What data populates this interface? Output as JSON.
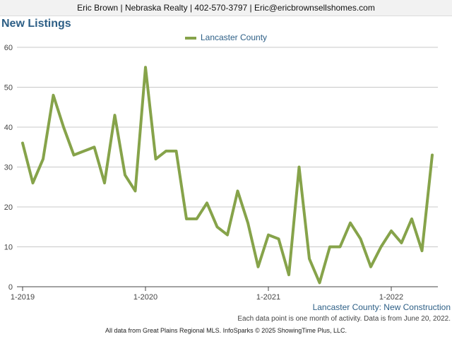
{
  "header": {
    "contact": "Eric Brown | Nebraska Realty | 402-570-3797 | Eric@ericbrownsellshomes.com"
  },
  "chart_data": {
    "type": "line",
    "title": "New Listings",
    "subtitle": "Lancaster County: New Construction",
    "series": [
      {
        "name": "Lancaster County",
        "color": "#86a34a",
        "values": [
          36,
          26,
          32,
          48,
          40,
          33,
          34,
          35,
          26,
          43,
          28,
          24,
          55,
          32,
          34,
          34,
          17,
          17,
          21,
          15,
          13,
          24,
          16,
          5,
          13,
          12,
          3,
          30,
          7,
          1,
          10,
          10,
          16,
          12,
          5,
          10,
          14,
          11,
          17,
          9,
          33
        ]
      }
    ],
    "x_start": "1-2019",
    "x_ticks": [
      "1-2019",
      "1-2020",
      "1-2021",
      "1-2022"
    ],
    "ylim": [
      0,
      60
    ],
    "y_ticks": [
      0,
      10,
      20,
      30,
      40,
      50,
      60
    ],
    "grid": true,
    "legend_position": "top-center"
  },
  "footer": {
    "note": "Each data point is one month of activity. Data is from June 20, 2022.",
    "source": "All data from Great Plains Regional MLS. InfoSparks © 2025 ShowingTime Plus, LLC."
  }
}
